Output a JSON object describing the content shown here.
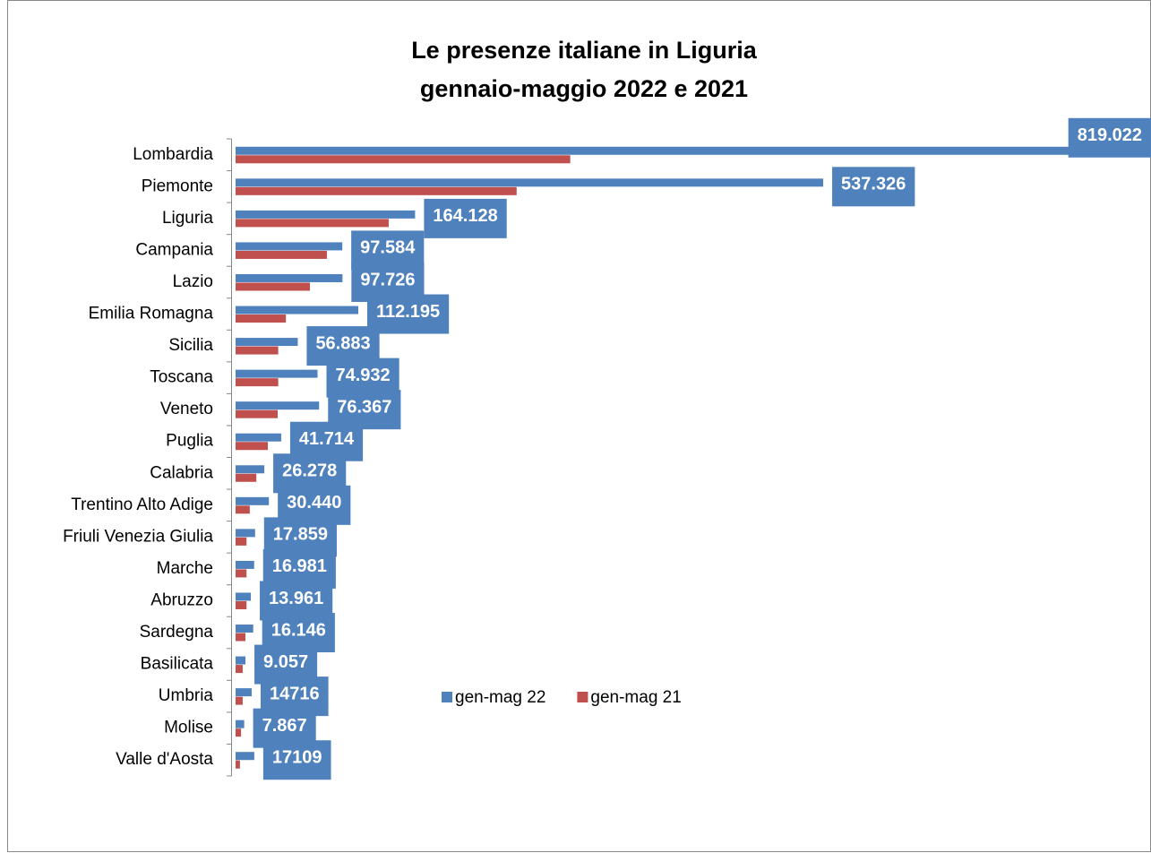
{
  "chart_data": {
    "type": "hbar",
    "title": [
      "Le presenze italiane in Liguria",
      "gennaio-maggio 2022 e 2021"
    ],
    "categories": [
      "Lombardia",
      "Piemonte",
      "Liguria",
      "Campania",
      "Lazio",
      "Emilia Romagna",
      "Sicilia",
      "Toscana",
      "Veneto",
      "Puglia",
      "Calabria",
      "Trentino Alto Adige",
      "Friuli Venezia Giulia",
      "Marche",
      "Abruzzo",
      "Sardegna",
      "Basilicata",
      "Umbria",
      "Molise",
      "Valle d'Aosta"
    ],
    "series": [
      {
        "name": "gen-mag 22",
        "color": "#4f81bd",
        "values": [
          819022,
          537326,
          164128,
          97584,
          97726,
          112195,
          56883,
          74932,
          76367,
          41714,
          26278,
          30440,
          17859,
          16981,
          13961,
          16146,
          9057,
          14716,
          7867,
          17109
        ],
        "value_labels": [
          "819.022",
          "537.326",
          "164.128",
          "97.584",
          "97.726",
          "112.195",
          "56.883",
          "74.932",
          "76.367",
          "41.714",
          "26.278",
          "30.440",
          "17.859",
          "16.981",
          "13.961",
          "16.146",
          "9.057",
          "14716",
          "7.867",
          "17109"
        ]
      },
      {
        "name": "gen-mag 21",
        "color": "#c0504d",
        "values": [
          306000,
          257000,
          140000,
          83500,
          68000,
          46000,
          39000,
          39000,
          38500,
          29500,
          19000,
          13000,
          10000,
          10000,
          10000,
          9000,
          6500,
          6500,
          5000,
          4000
        ]
      }
    ],
    "legend": "bottom"
  }
}
